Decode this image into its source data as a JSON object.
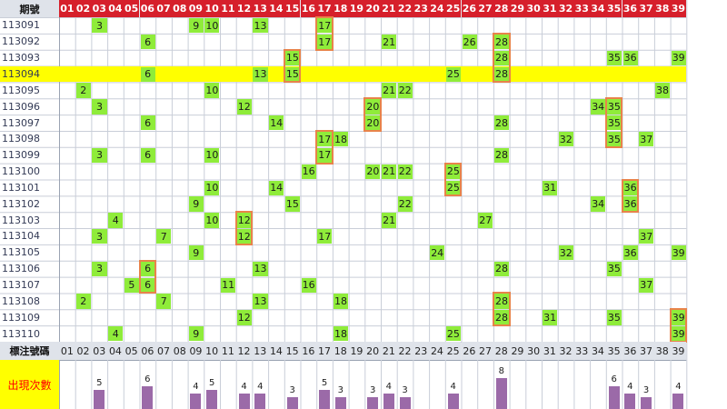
{
  "chart_data": {
    "type": "table",
    "header_label": "期號",
    "columns": [
      "01",
      "02",
      "03",
      "04",
      "05",
      "06",
      "07",
      "08",
      "09",
      "10",
      "11",
      "12",
      "13",
      "14",
      "15",
      "16",
      "17",
      "18",
      "19",
      "20",
      "21",
      "22",
      "23",
      "24",
      "25",
      "26",
      "27",
      "28",
      "29",
      "30",
      "31",
      "32",
      "33",
      "34",
      "35",
      "36",
      "37",
      "38",
      "39"
    ],
    "rows": [
      {
        "period": "113091",
        "numbers": [
          3,
          9,
          10,
          13,
          17
        ]
      },
      {
        "period": "113092",
        "numbers": [
          6,
          17,
          21,
          26,
          28
        ]
      },
      {
        "period": "113093",
        "numbers": [
          15,
          28,
          35,
          36,
          39
        ]
      },
      {
        "period": "113094",
        "numbers": [
          6,
          13,
          15,
          25,
          28
        ],
        "highlight": true
      },
      {
        "period": "113095",
        "numbers": [
          2,
          10,
          21,
          22,
          38
        ]
      },
      {
        "period": "113096",
        "numbers": [
          3,
          12,
          20,
          34,
          35
        ]
      },
      {
        "period": "113097",
        "numbers": [
          6,
          14,
          20,
          28,
          35
        ]
      },
      {
        "period": "113098",
        "numbers": [
          17,
          18,
          32,
          35,
          37
        ]
      },
      {
        "period": "113099",
        "numbers": [
          3,
          6,
          10,
          17,
          28
        ]
      },
      {
        "period": "113100",
        "numbers": [
          16,
          20,
          21,
          22,
          25
        ]
      },
      {
        "period": "113101",
        "numbers": [
          10,
          14,
          25,
          31,
          36
        ]
      },
      {
        "period": "113102",
        "numbers": [
          9,
          15,
          22,
          34,
          36
        ]
      },
      {
        "period": "113103",
        "numbers": [
          4,
          10,
          12,
          21,
          27
        ]
      },
      {
        "period": "113104",
        "numbers": [
          3,
          7,
          12,
          17,
          37
        ]
      },
      {
        "period": "113105",
        "numbers": [
          9,
          24,
          32,
          36,
          39
        ]
      },
      {
        "period": "113106",
        "numbers": [
          3,
          6,
          13,
          28,
          35
        ]
      },
      {
        "period": "113107",
        "numbers": [
          5,
          6,
          11,
          16,
          37
        ]
      },
      {
        "period": "113108",
        "numbers": [
          2,
          7,
          13,
          18,
          28
        ]
      },
      {
        "period": "113109",
        "numbers": [
          12,
          28,
          31,
          35,
          39
        ]
      },
      {
        "period": "113110",
        "numbers": [
          4,
          9,
          18,
          25,
          39
        ]
      }
    ],
    "boxes": [
      {
        "number": 17,
        "from": "113091",
        "to": "113092"
      },
      {
        "number": 28,
        "from": "113092",
        "to": "113094"
      },
      {
        "number": 15,
        "from": "113093",
        "to": "113094"
      },
      {
        "number": 20,
        "from": "113096",
        "to": "113097"
      },
      {
        "number": 35,
        "from": "113096",
        "to": "113098"
      },
      {
        "number": 17,
        "from": "113098",
        "to": "113099"
      },
      {
        "number": 25,
        "from": "113100",
        "to": "113101"
      },
      {
        "number": 36,
        "from": "113101",
        "to": "113102"
      },
      {
        "number": 12,
        "from": "113103",
        "to": "113104"
      },
      {
        "number": 6,
        "from": "113106",
        "to": "113107"
      },
      {
        "number": 28,
        "from": "113108",
        "to": "113109"
      },
      {
        "number": 39,
        "from": "113109",
        "to": "113110"
      }
    ],
    "footer_label": "標注號碼",
    "count_label": "出現次數",
    "counts": [
      {
        "number": "03",
        "count": 5
      },
      {
        "number": "06",
        "count": 6
      },
      {
        "number": "09",
        "count": 4
      },
      {
        "number": "10",
        "count": 5
      },
      {
        "number": "12",
        "count": 4
      },
      {
        "number": "13",
        "count": 4
      },
      {
        "number": "15",
        "count": 3
      },
      {
        "number": "17",
        "count": 5
      },
      {
        "number": "18",
        "count": 3
      },
      {
        "number": "20",
        "count": 3
      },
      {
        "number": "21",
        "count": 4
      },
      {
        "number": "22",
        "count": 3
      },
      {
        "number": "25",
        "count": 4
      },
      {
        "number": "28",
        "count": 8
      },
      {
        "number": "35",
        "count": 6
      },
      {
        "number": "36",
        "count": 4
      },
      {
        "number": "37",
        "count": 3
      },
      {
        "number": "39",
        "count": 4
      }
    ],
    "colors": {
      "header_bg": "#d61f2b",
      "cell_hit": "#8fec3a",
      "highlight_row": "#ffff00",
      "box_border": "#e8834a",
      "bar": "#9b6aa8",
      "count_label": "#ff0000"
    }
  }
}
